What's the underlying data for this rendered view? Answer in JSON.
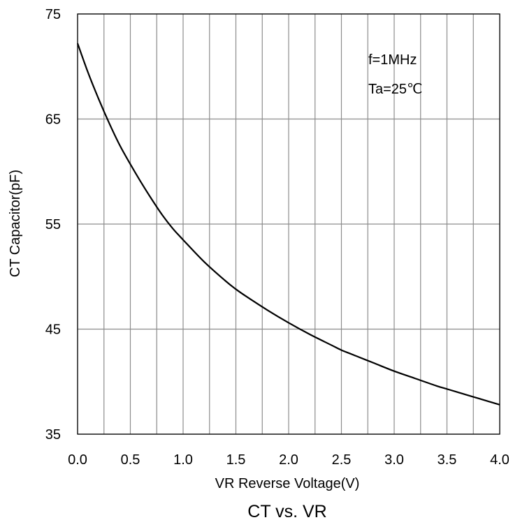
{
  "chart_data": {
    "type": "line",
    "title": "CT vs. VR",
    "xlabel": "VR Reverse Voltage(V)",
    "ylabel": "CT Capacitor(pF)",
    "xlim": [
      0,
      4
    ],
    "ylim": [
      35,
      75
    ],
    "x_ticks": [
      "0.0",
      "0.5",
      "1.0",
      "1.5",
      "2.0",
      "2.5",
      "3.0",
      "3.5",
      "4.0"
    ],
    "y_ticks": [
      "35",
      "45",
      "55",
      "65",
      "75"
    ],
    "grid": true,
    "annotations": [
      "f=1MHz",
      "Ta=25℃"
    ],
    "series": [
      {
        "x": [
          0.0,
          0.1,
          0.2,
          0.3,
          0.4,
          0.5,
          0.6,
          0.7,
          0.8,
          0.9,
          1.0,
          1.2,
          1.4,
          1.5,
          1.6,
          1.8,
          2.0,
          2.2,
          2.4,
          2.5,
          2.6,
          2.8,
          3.0,
          3.2,
          3.4,
          3.5,
          3.6,
          3.8,
          4.0
        ],
        "y": [
          72.2,
          69.4,
          66.9,
          64.6,
          62.5,
          60.7,
          59.0,
          57.4,
          55.9,
          54.6,
          53.5,
          51.4,
          49.6,
          48.8,
          48.1,
          46.8,
          45.6,
          44.5,
          43.5,
          43.0,
          42.6,
          41.8,
          41.0,
          40.3,
          39.6,
          39.3,
          39.0,
          38.4,
          37.8
        ],
        "color": "#000000"
      }
    ]
  }
}
